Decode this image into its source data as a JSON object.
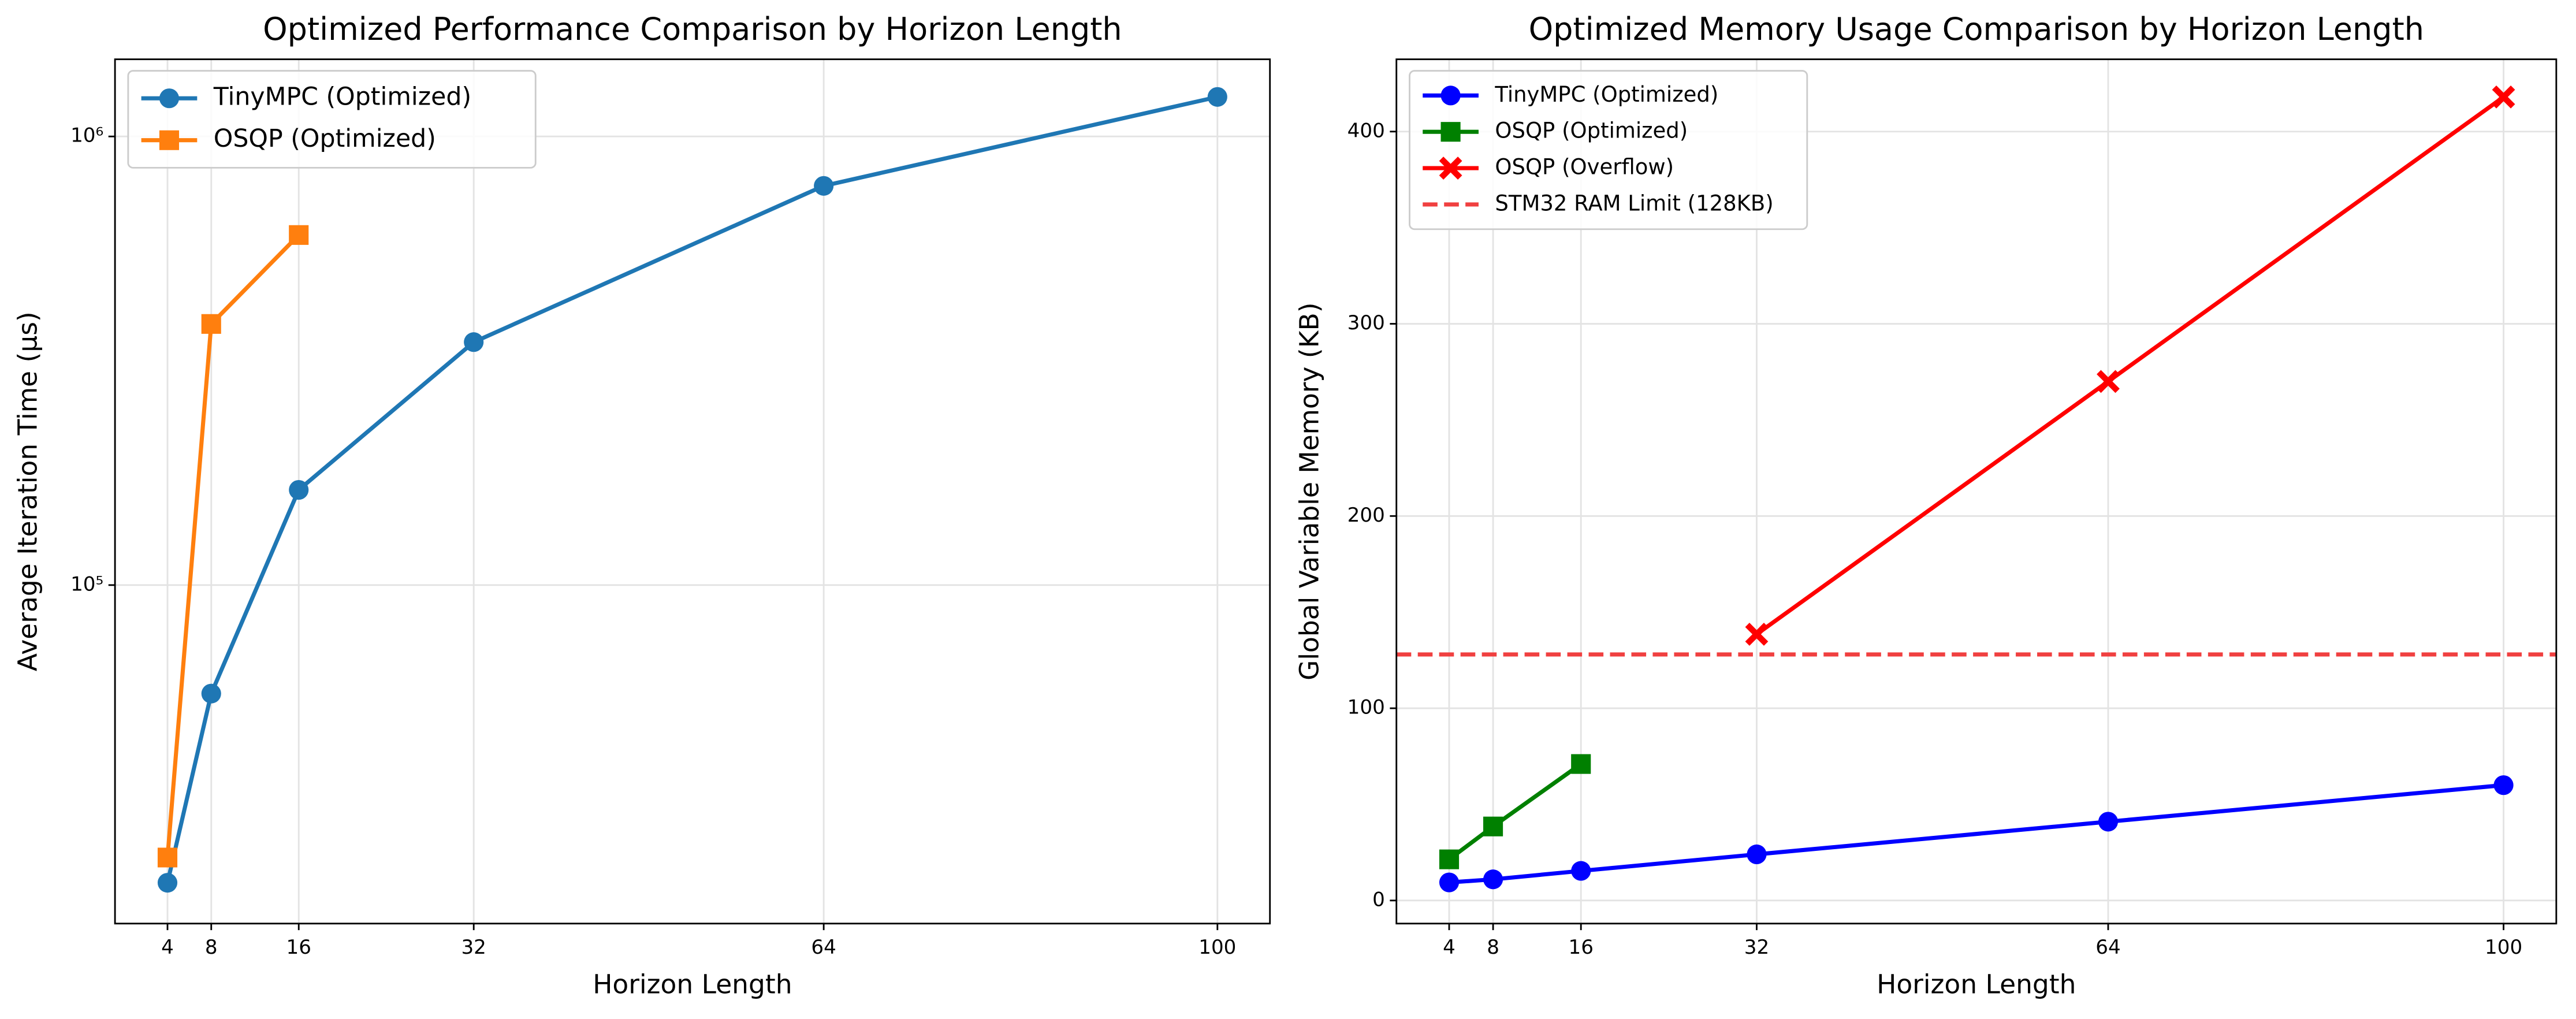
{
  "chart_data": [
    {
      "type": "line",
      "title": "Optimized Performance Comparison by Horizon Length",
      "x_label": "Horizon Length",
      "y_label": "Average Iteration Time (μs)",
      "x": [
        4,
        8,
        16,
        32,
        64,
        100
      ],
      "series": [
        {
          "name": "TinyMPC (Optimized)",
          "color": "#1f77b4",
          "marker": "circle",
          "values": [
            21700,
            57300,
            163000,
            348000,
            776000,
            1225000
          ]
        },
        {
          "name": "OSQP (Optimized)",
          "color": "#ff7f0e",
          "marker": "square",
          "values": [
            24700,
            382000,
            603000,
            null,
            null,
            null
          ]
        }
      ],
      "xlim": [
        -0.8,
        104.8
      ],
      "xticks": [
        4,
        8,
        16,
        32,
        64,
        100
      ],
      "ylim": [
        17600,
        1486000
      ],
      "y_scale": "log",
      "yticks": [
        {
          "value": 100000,
          "label": "10⁵"
        },
        {
          "value": 1000000,
          "label": "10⁶"
        }
      ],
      "grid": true,
      "legend": "upper left"
    },
    {
      "type": "line",
      "title": "Optimized Memory Usage Comparison by Horizon Length",
      "x_label": "Horizon Length",
      "y_label": "Global Variable Memory (KB)",
      "x": [
        4,
        8,
        16,
        32,
        64,
        100
      ],
      "series": [
        {
          "name": "TinyMPC (Optimized)",
          "color": "#0000ff",
          "marker": "circle",
          "values": [
            9.4,
            11,
            15.4,
            24,
            41,
            60
          ]
        },
        {
          "name": "OSQP (Optimized)",
          "color": "#008000",
          "marker": "square",
          "values": [
            21.4,
            38.5,
            71,
            null,
            null,
            null
          ]
        },
        {
          "name": "OSQP (Overflow)",
          "color": "#ff0000",
          "marker": "x",
          "values": [
            null,
            null,
            null,
            138.5,
            270,
            418
          ]
        }
      ],
      "reference_lines": [
        {
          "name": "STM32 RAM Limit (128KB)",
          "value": 128,
          "color": "#f04040"
        }
      ],
      "xlim": [
        -0.8,
        104.8
      ],
      "xticks": [
        4,
        8,
        16,
        32,
        64,
        100
      ],
      "ylim": [
        -12,
        437.6
      ],
      "yticks": [
        0,
        100,
        200,
        300,
        400
      ],
      "grid": true,
      "legend": "upper left"
    }
  ]
}
